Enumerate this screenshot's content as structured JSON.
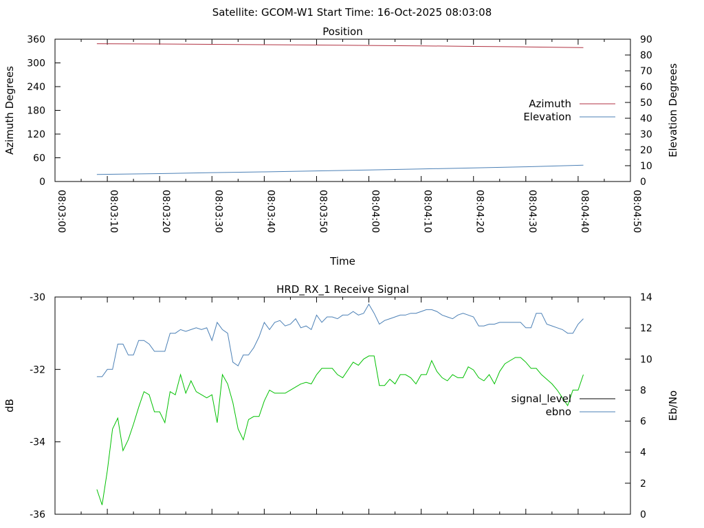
{
  "header": {
    "title": "Satellite: GCOM-W1    Start Time: 16-Oct-2025 08:03:08"
  },
  "chart_data": [
    {
      "type": "line",
      "title": "Position",
      "xlabel": "Time",
      "ylabel": "Azimuth Degrees",
      "y2label": "Elevation Degrees",
      "ylim": [
        0,
        360
      ],
      "y2lim": [
        0,
        90
      ],
      "yticks": [
        "0",
        "60",
        "120",
        "180",
        "240",
        "300",
        "360"
      ],
      "y2ticks": [
        "0",
        "10",
        "20",
        "30",
        "40",
        "50",
        "60",
        "70",
        "80",
        "90"
      ],
      "xlim": [
        "08:03:00",
        "08:04:50"
      ],
      "xticks": [
        "08:03:00",
        "08:03:10",
        "08:03:20",
        "08:03:30",
        "08:03:40",
        "08:03:50",
        "08:04:00",
        "08:04:10",
        "08:04:20",
        "08:04:30",
        "08:04:40",
        "08:04:50"
      ],
      "grid": false,
      "legend": "right",
      "series": [
        {
          "name": "Azimuth",
          "axis": "left",
          "color": "#b03040",
          "x": [
            "08:03:08",
            "08:03:20",
            "08:03:30",
            "08:03:40",
            "08:03:50",
            "08:04:00",
            "08:04:10",
            "08:04:20",
            "08:04:30",
            "08:04:41"
          ],
          "y": [
            348.5,
            347.8,
            347,
            346,
            345.2,
            344.2,
            343.2,
            341.8,
            340.5,
            338.6
          ]
        },
        {
          "name": "Elevation",
          "axis": "right",
          "color": "#4a7fb5",
          "x": [
            "08:03:08",
            "08:03:20",
            "08:03:30",
            "08:03:40",
            "08:03:50",
            "08:04:00",
            "08:04:10",
            "08:04:20",
            "08:04:30",
            "08:04:41"
          ],
          "y": [
            4.5,
            5,
            5.6,
            6.1,
            6.7,
            7.3,
            7.9,
            8.6,
            9.3,
            10.3
          ]
        }
      ]
    },
    {
      "type": "line",
      "title": "HRD_RX_1 Receive Signal",
      "ylabel": "dB",
      "y2label": "Eb/No",
      "ylim": [
        -36,
        -30
      ],
      "y2lim": [
        0,
        14
      ],
      "yticks": [
        "-36",
        "-34",
        "-32",
        "-30"
      ],
      "y2ticks": [
        "0",
        "2",
        "4",
        "6",
        "8",
        "10",
        "12",
        "14"
      ],
      "xlim": [
        "08:03:00",
        "08:04:50"
      ],
      "grid": false,
      "legend": "right",
      "series": [
        {
          "name": "signal_level",
          "axis": "left",
          "color": "#4a7fb5",
          "x": [
            "08:03:08",
            "08:03:09",
            "08:03:10",
            "08:03:11",
            "08:03:12",
            "08:03:13",
            "08:03:14",
            "08:03:15",
            "08:03:16",
            "08:03:17",
            "08:03:18",
            "08:03:19",
            "08:03:20",
            "08:03:21",
            "08:03:22",
            "08:03:23",
            "08:03:24",
            "08:03:25",
            "08:03:26",
            "08:03:27",
            "08:03:28",
            "08:03:29",
            "08:03:30",
            "08:03:31",
            "08:03:32",
            "08:03:33",
            "08:03:34",
            "08:03:35",
            "08:03:36",
            "08:03:37",
            "08:03:38",
            "08:03:39",
            "08:03:40",
            "08:03:41",
            "08:03:42",
            "08:03:43",
            "08:03:44",
            "08:03:45",
            "08:03:46",
            "08:03:47",
            "08:03:48",
            "08:03:49",
            "08:03:50",
            "08:03:51",
            "08:03:52",
            "08:03:53",
            "08:03:54",
            "08:03:55",
            "08:03:56",
            "08:03:57",
            "08:03:58",
            "08:03:59",
            "08:04:00",
            "08:04:01",
            "08:04:02",
            "08:04:03",
            "08:04:04",
            "08:04:05",
            "08:04:06",
            "08:04:07",
            "08:04:08",
            "08:04:09",
            "08:04:10",
            "08:04:11",
            "08:04:12",
            "08:04:13",
            "08:04:14",
            "08:04:15",
            "08:04:16",
            "08:04:17",
            "08:04:18",
            "08:04:19",
            "08:04:20",
            "08:04:21",
            "08:04:22",
            "08:04:23",
            "08:04:24",
            "08:04:25",
            "08:04:26",
            "08:04:27",
            "08:04:28",
            "08:04:29",
            "08:04:30",
            "08:04:31",
            "08:04:32",
            "08:04:33",
            "08:04:34",
            "08:04:35",
            "08:04:36",
            "08:04:37",
            "08:04:38",
            "08:04:39",
            "08:04:40",
            "08:04:41"
          ],
          "y": [
            -32.2,
            -32.2,
            -32,
            -32,
            -31.3,
            -31.3,
            -31.6,
            -31.6,
            -31.2,
            -31.2,
            -31.3,
            -31.5,
            -31.5,
            -31.5,
            -31.0,
            -31.0,
            -30.9,
            -30.95,
            -30.9,
            -30.85,
            -30.9,
            -30.85,
            -31.2,
            -30.7,
            -30.9,
            -31.0,
            -31.8,
            -31.9,
            -31.6,
            -31.6,
            -31.4,
            -31.1,
            -30.7,
            -30.9,
            -30.7,
            -30.65,
            -30.8,
            -30.75,
            -30.6,
            -30.85,
            -30.8,
            -30.9,
            -30.5,
            -30.7,
            -30.55,
            -30.55,
            -30.6,
            -30.5,
            -30.5,
            -30.4,
            -30.5,
            -30.45,
            -30.2,
            -30.45,
            -30.75,
            -30.65,
            -30.6,
            -30.55,
            -30.5,
            -30.5,
            -30.45,
            -30.45,
            -30.4,
            -30.35,
            -30.35,
            -30.4,
            -30.5,
            -30.55,
            -30.6,
            -30.5,
            -30.45,
            -30.5,
            -30.55,
            -30.8,
            -30.8,
            -30.75,
            -30.75,
            -30.7,
            -30.7,
            -30.7,
            -30.7,
            -30.7,
            -30.85,
            -30.85,
            -30.45,
            -30.45,
            -30.75,
            -30.8,
            -30.85,
            -30.9,
            -31.0,
            -31.0,
            -30.75,
            -30.6
          ]
        },
        {
          "name": "ebno",
          "axis": "right",
          "color": "#00c000",
          "x": [
            "08:03:08",
            "08:03:09",
            "08:03:10",
            "08:03:11",
            "08:03:12",
            "08:03:13",
            "08:03:14",
            "08:03:15",
            "08:03:16",
            "08:03:17",
            "08:03:18",
            "08:03:19",
            "08:03:20",
            "08:03:21",
            "08:03:22",
            "08:03:23",
            "08:03:24",
            "08:03:25",
            "08:03:26",
            "08:03:27",
            "08:03:28",
            "08:03:29",
            "08:03:30",
            "08:03:31",
            "08:03:32",
            "08:03:33",
            "08:03:34",
            "08:03:35",
            "08:03:36",
            "08:03:37",
            "08:03:38",
            "08:03:39",
            "08:03:40",
            "08:03:41",
            "08:03:42",
            "08:03:43",
            "08:03:44",
            "08:03:45",
            "08:03:46",
            "08:03:47",
            "08:03:48",
            "08:03:49",
            "08:03:50",
            "08:03:51",
            "08:03:52",
            "08:03:53",
            "08:03:54",
            "08:03:55",
            "08:03:56",
            "08:03:57",
            "08:03:58",
            "08:03:59",
            "08:04:00",
            "08:04:01",
            "08:04:02",
            "08:04:03",
            "08:04:04",
            "08:04:05",
            "08:04:06",
            "08:04:07",
            "08:04:08",
            "08:04:09",
            "08:04:10",
            "08:04:11",
            "08:04:12",
            "08:04:13",
            "08:04:14",
            "08:04:15",
            "08:04:16",
            "08:04:17",
            "08:04:18",
            "08:04:19",
            "08:04:20",
            "08:04:21",
            "08:04:22",
            "08:04:23",
            "08:04:24",
            "08:04:25",
            "08:04:26",
            "08:04:27",
            "08:04:28",
            "08:04:29",
            "08:04:30",
            "08:04:31",
            "08:04:32",
            "08:04:33",
            "08:04:34",
            "08:04:35",
            "08:04:36",
            "08:04:37",
            "08:04:38",
            "08:04:39",
            "08:04:40",
            "08:04:41"
          ],
          "y": [
            1.6,
            0.6,
            2.8,
            5.5,
            6.2,
            4.1,
            4.8,
            5.8,
            6.9,
            7.9,
            7.7,
            6.6,
            6.6,
            5.9,
            7.9,
            7.7,
            9.0,
            7.8,
            8.6,
            7.9,
            7.7,
            7.5,
            7.7,
            5.9,
            9.0,
            8.4,
            7.2,
            5.5,
            4.8,
            6.1,
            6.3,
            6.3,
            7.3,
            8.0,
            7.8,
            7.8,
            7.8,
            8.0,
            8.2,
            8.4,
            8.5,
            8.4,
            9.0,
            9.4,
            9.4,
            9.4,
            9.0,
            8.8,
            9.3,
            9.8,
            9.6,
            10.0,
            10.2,
            10.2,
            8.3,
            8.3,
            8.7,
            8.4,
            9.0,
            9.0,
            8.8,
            8.4,
            9.0,
            9.0,
            9.9,
            9.2,
            8.8,
            8.6,
            9.0,
            8.8,
            8.8,
            9.5,
            9.3,
            8.8,
            8.6,
            9.0,
            8.4,
            9.2,
            9.7,
            9.9,
            10.1,
            10.1,
            9.8,
            9.4,
            9.4,
            9.0,
            8.7,
            8.4,
            8.0,
            7.5,
            7.0,
            8.0,
            8.0,
            9.0
          ]
        }
      ]
    }
  ]
}
